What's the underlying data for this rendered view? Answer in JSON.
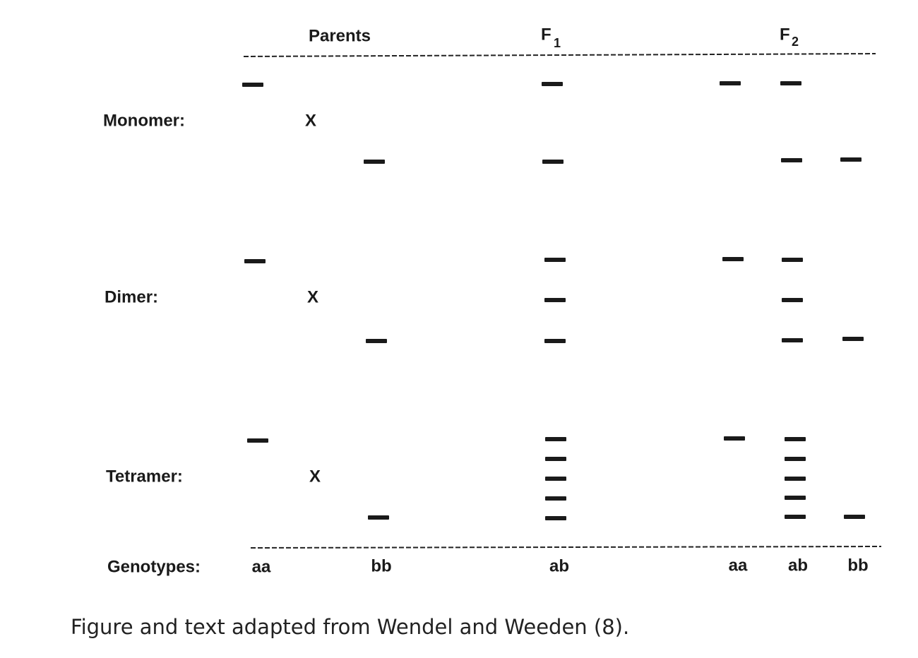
{
  "header": {
    "parents": "Parents",
    "f1": {
      "base": "F",
      "sub": "1"
    },
    "f2": {
      "base": "F",
      "sub": "2"
    }
  },
  "rows": [
    {
      "label": "Monomer:",
      "cross": "X"
    },
    {
      "label": "Dimer:",
      "cross": "X"
    },
    {
      "label": "Tetramer:",
      "cross": "X"
    }
  ],
  "genotypes": {
    "label": "Genotypes:",
    "items": [
      "aa",
      "bb",
      "ab",
      "aa",
      "ab",
      "bb"
    ]
  },
  "caption": "Figure and text adapted from Wendel and Weeden (8)."
}
